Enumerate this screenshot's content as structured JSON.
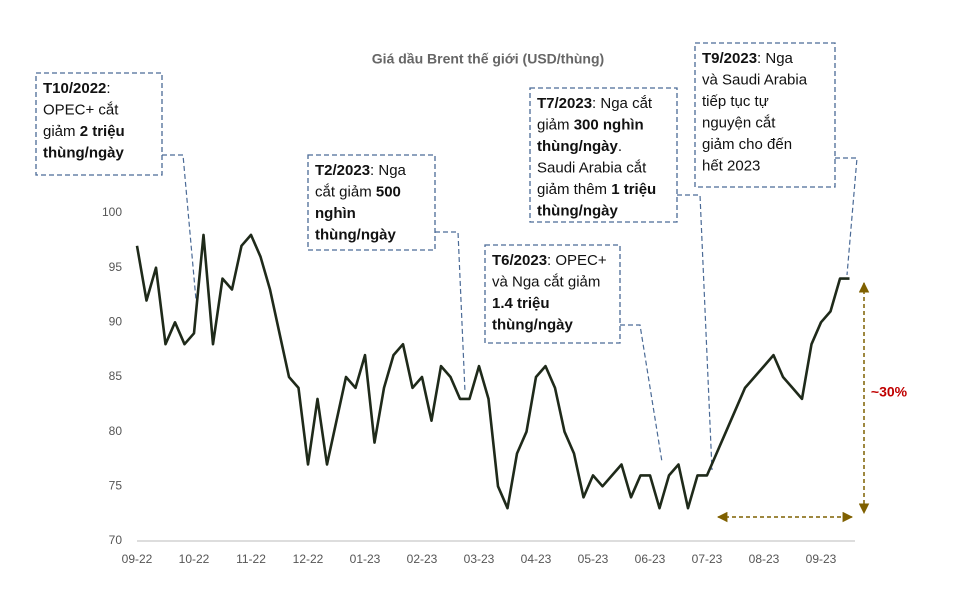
{
  "chart_data": {
    "type": "line",
    "title": "Giá dầu Brent thế giới (USD/thùng)",
    "categories": [
      "09-22",
      null,
      null,
      null,
      null,
      null,
      "10-22",
      null,
      null,
      null,
      null,
      null,
      "11-22",
      null,
      null,
      null,
      null,
      null,
      "12-22",
      null,
      null,
      null,
      null,
      null,
      "01-23",
      null,
      null,
      null,
      null,
      null,
      "02-23",
      null,
      null,
      null,
      null,
      null,
      "03-23",
      null,
      null,
      null,
      null,
      null,
      "04-23",
      null,
      null,
      null,
      null,
      null,
      "05-23",
      null,
      null,
      null,
      null,
      null,
      "06-23",
      null,
      null,
      null,
      null,
      null,
      "07-23",
      null,
      null,
      null,
      null,
      null,
      "08-23",
      null,
      null,
      null,
      null,
      null,
      "09-23",
      null,
      null,
      null
    ],
    "values": [
      97,
      92,
      95,
      88,
      90,
      88,
      89,
      98,
      88,
      94,
      93,
      97,
      98,
      96,
      93,
      89,
      85,
      84,
      77,
      83,
      77,
      81,
      85,
      84,
      87,
      79,
      84,
      87,
      88,
      84,
      85,
      81,
      86,
      85,
      83,
      83,
      86,
      83,
      75,
      73,
      78,
      80,
      85,
      86,
      84,
      80,
      78,
      74,
      76,
      75,
      76,
      77,
      74,
      76,
      76,
      73,
      76,
      77,
      73,
      76,
      76,
      78,
      80,
      82,
      84,
      85,
      86,
      87,
      85,
      84,
      83,
      88,
      90,
      91,
      94,
      94
    ],
    "color": "#1f2a1a",
    "ylim": [
      70,
      100
    ],
    "yticks": [
      70,
      75,
      80,
      85,
      90,
      95,
      100
    ],
    "grid": false,
    "annotations": [
      {
        "lines": [
          [
            {
              "text": "T10/2022",
              "b": true
            },
            {
              "text": ":"
            }
          ],
          [
            {
              "text": "OPEC+ cắt"
            }
          ],
          [
            {
              "text": "giảm "
            },
            {
              "text": "2 triệu",
              "b": true
            }
          ],
          [
            {
              "text": "thùng/ngày",
              "b": true
            }
          ]
        ]
      },
      {
        "lines": [
          [
            {
              "text": "T2/2023",
              "b": true
            },
            {
              "text": ": Nga"
            }
          ],
          [
            {
              "text": "cắt giảm "
            },
            {
              "text": "500",
              "b": true
            }
          ],
          [
            {
              "text": "nghìn",
              "b": true
            }
          ],
          [
            {
              "text": "thùng/ngày",
              "b": true
            }
          ]
        ]
      },
      {
        "lines": [
          [
            {
              "text": "T6/2023",
              "b": true
            },
            {
              "text": ": OPEC+"
            }
          ],
          [
            {
              "text": "và Nga cắt giảm"
            }
          ],
          [
            {
              "text": "1.4 triệu",
              "b": true
            }
          ],
          [
            {
              "text": "thùng/ngày",
              "b": true
            }
          ]
        ]
      },
      {
        "lines": [
          [
            {
              "text": "T7/2023",
              "b": true
            },
            {
              "text": ": Nga cắt"
            }
          ],
          [
            {
              "text": "giảm "
            },
            {
              "text": "300 nghìn",
              "b": true
            }
          ],
          [
            {
              "text": "thùng/ngày",
              "b": true
            },
            {
              "text": "."
            }
          ],
          [
            {
              "text": "Saudi Arabia cắt"
            }
          ],
          [
            {
              "text": "giảm thêm "
            },
            {
              "text": "1 triệu",
              "b": true
            }
          ],
          [
            {
              "text": "thùng/ngày",
              "b": true
            }
          ]
        ]
      },
      {
        "lines": [
          [
            {
              "text": "T9/2023",
              "b": true
            },
            {
              "text": ": Nga"
            }
          ],
          [
            {
              "text": "và Saudi Arabia"
            }
          ],
          [
            {
              "text": "tiếp tục tự"
            }
          ],
          [
            {
              "text": "nguyện cắt"
            }
          ],
          [
            {
              "text": "giảm cho đến"
            }
          ],
          [
            {
              "text": "hết 2023"
            }
          ]
        ]
      }
    ],
    "change_label": "~30%"
  }
}
